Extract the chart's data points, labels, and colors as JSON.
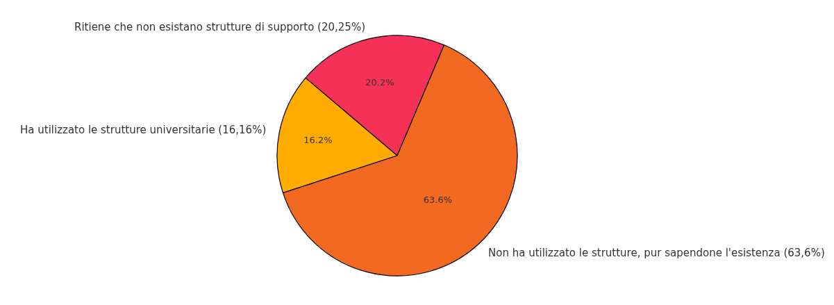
{
  "chart_data": {
    "type": "pie",
    "categories": [
      "Ritiene che non esistano strutture di supporto (20,25%)",
      "Ha utilizzato le strutture universitarie (16,16%)",
      "Non ha utilizzato le strutture, pur sapendone l'esistenza (63,6%)"
    ],
    "values": [
      20.2,
      16.2,
      63.6
    ],
    "value_labels": [
      "20.2%",
      "16.2%",
      "63.6%"
    ],
    "colors": [
      "#f53157",
      "#ffab00",
      "#f26a22"
    ],
    "legend": false
  }
}
